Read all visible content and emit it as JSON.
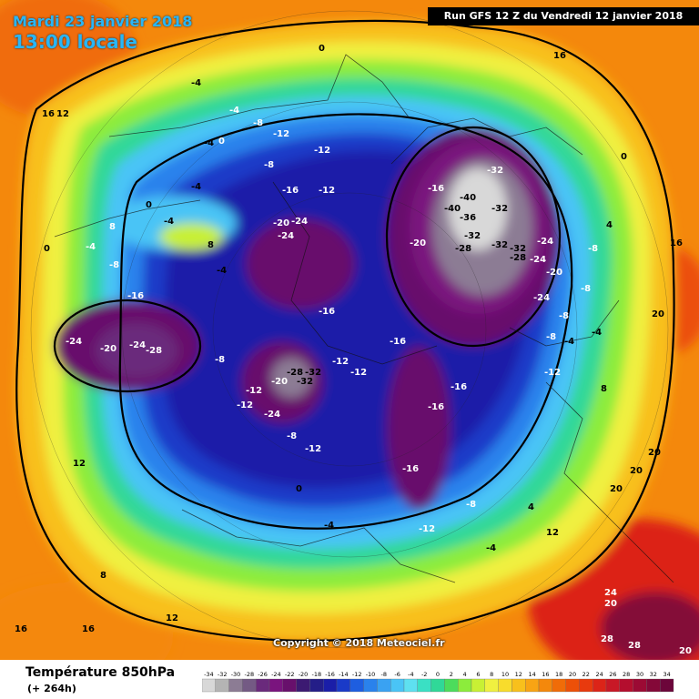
{
  "header": {
    "date": "Mardi 23 janvier 2018",
    "time": "13:00 locale",
    "run": "Run GFS 12 Z du Vendredi 12 janvier 2018"
  },
  "footer": {
    "title": "Température 850hPa",
    "forecast_hour": "(+ 264h)",
    "copyright": "Copyright © 2018 Meteociel.fr"
  },
  "legend": {
    "values": [
      "-34",
      "-32",
      "-30",
      "-28",
      "-26",
      "-24",
      "-22",
      "-20",
      "-18",
      "-16",
      "-14",
      "-12",
      "-10",
      "-8",
      "-6",
      "-4",
      "-2",
      "0",
      "2",
      "4",
      "6",
      "8",
      "10",
      "12",
      "14",
      "16",
      "18",
      "20",
      "22",
      "24",
      "26",
      "28",
      "30",
      "32",
      "34"
    ],
    "colors": [
      "#d8d8d8",
      "#b4b4b4",
      "#8c7c94",
      "#745a84",
      "#6a2a7c",
      "#7a147e",
      "#68106c",
      "#3c1a72",
      "#241e88",
      "#1a1ea8",
      "#1a3ac8",
      "#1e5ee0",
      "#2a82ec",
      "#3aa2f2",
      "#4ac4f6",
      "#5ee0f0",
      "#3ae0c4",
      "#30d898",
      "#4cdc5c",
      "#8cec3c",
      "#c8f034",
      "#f0f040",
      "#f8dc2c",
      "#f8c01c",
      "#f8a414",
      "#f4880c",
      "#f06c08",
      "#ec5008",
      "#e83a0e",
      "#dc2418",
      "#c81826",
      "#b40e2e",
      "#9c0a34",
      "#840838",
      "#6c063a"
    ]
  },
  "map_labels": [
    {
      "t": "-4"
    },
    {
      "t": "-8"
    },
    {
      "t": "-12"
    },
    {
      "t": "-16"
    },
    {
      "t": "-20"
    },
    {
      "t": "-24"
    },
    {
      "t": "-28"
    },
    {
      "t": "-32"
    },
    {
      "t": "-36"
    },
    {
      "t": "-40"
    },
    {
      "t": "0"
    },
    {
      "t": "4"
    },
    {
      "t": "8"
    },
    {
      "t": "12"
    },
    {
      "t": "16"
    },
    {
      "t": "20"
    },
    {
      "t": "24"
    },
    {
      "t": "28"
    }
  ]
}
